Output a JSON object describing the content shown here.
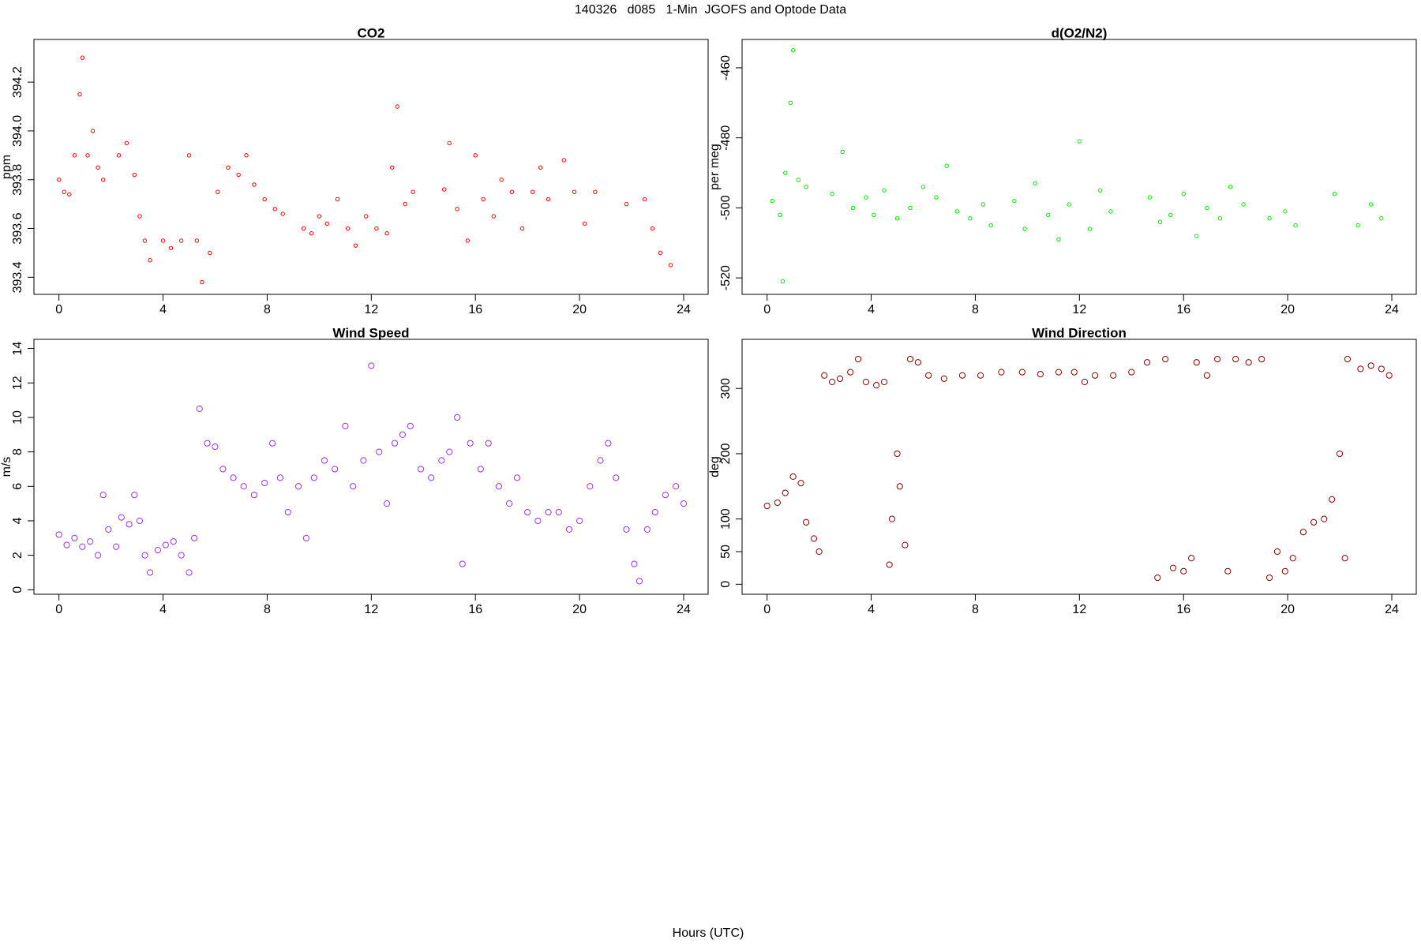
{
  "title": "140326   d085   1-Min  JGOFS and Optode Data",
  "xlabel": "Hours (UTC)",
  "chart_data": [
    {
      "type": "scatter",
      "title": "CO2",
      "ylabel": "ppm",
      "color": "#ff0000",
      "x": [
        0.0,
        0.2,
        0.4,
        0.6,
        0.8,
        0.9,
        1.1,
        1.3,
        1.5,
        1.7,
        2.3,
        2.6,
        2.9,
        3.1,
        3.3,
        3.5,
        4.0,
        4.3,
        4.7,
        5.0,
        5.3,
        5.5,
        5.8,
        6.1,
        6.5,
        6.9,
        7.2,
        7.5,
        7.9,
        8.3,
        8.6,
        9.4,
        9.7,
        10.0,
        10.3,
        10.7,
        11.1,
        11.4,
        11.8,
        12.2,
        12.6,
        12.8,
        13.0,
        13.3,
        13.6,
        14.8,
        15.0,
        15.3,
        15.7,
        16.0,
        16.3,
        16.7,
        17.0,
        17.4,
        17.8,
        18.2,
        18.5,
        18.8,
        19.4,
        19.8,
        20.2,
        20.6,
        21.8,
        22.5,
        22.8,
        23.1,
        23.5
      ],
      "values": [
        393.8,
        393.75,
        393.74,
        393.9,
        394.15,
        394.3,
        393.9,
        394.0,
        393.85,
        393.8,
        393.9,
        393.95,
        393.82,
        393.65,
        393.55,
        393.47,
        393.55,
        393.52,
        393.55,
        393.9,
        393.55,
        393.38,
        393.5,
        393.75,
        393.85,
        393.82,
        393.9,
        393.78,
        393.72,
        393.68,
        393.66,
        393.6,
        393.58,
        393.65,
        393.62,
        393.72,
        393.6,
        393.53,
        393.65,
        393.6,
        393.58,
        393.85,
        394.1,
        393.7,
        393.75,
        393.76,
        393.95,
        393.68,
        393.55,
        393.9,
        393.72,
        393.65,
        393.8,
        393.75,
        393.6,
        393.75,
        393.85,
        393.72,
        393.88,
        393.75,
        393.62,
        393.75,
        393.7,
        393.72,
        393.6,
        393.5,
        393.45
      ],
      "xlim": [
        -0.96,
        24.94
      ],
      "ylim": [
        393.33,
        394.375
      ],
      "xticks": [
        0,
        4,
        8,
        12,
        16,
        20,
        24
      ],
      "yticks": [
        393.4,
        393.6,
        393.8,
        {
          "value": 394,
          "label": "394.0"
        },
        394.2
      ]
    },
    {
      "type": "scatter",
      "title": "d(O2/N2)",
      "ylabel": "per meg",
      "color": "#00ee00",
      "x": [
        0.2,
        0.5,
        0.6,
        0.7,
        0.9,
        1.0,
        1.2,
        1.5,
        2.5,
        2.9,
        3.3,
        3.8,
        4.1,
        4.5,
        5.0,
        5.5,
        6.0,
        6.5,
        6.9,
        7.3,
        7.8,
        8.3,
        8.6,
        9.5,
        9.9,
        10.3,
        10.8,
        11.2,
        11.6,
        12.0,
        12.4,
        12.8,
        13.2,
        14.7,
        15.1,
        15.5,
        16.0,
        16.5,
        16.9,
        17.4,
        17.8,
        18.3,
        19.3,
        19.9,
        20.3,
        21.8,
        22.7,
        23.2,
        23.6
      ],
      "values": [
        -498,
        -502,
        -521,
        -490,
        -470,
        -455,
        -492,
        -494,
        -496,
        -484,
        -500,
        -497,
        -502,
        -495,
        -503,
        -500,
        -494,
        -497,
        -488,
        -501,
        -503,
        -499,
        -505,
        -498,
        -506,
        -493,
        -502,
        -509,
        -499,
        -481,
        -506,
        -495,
        -501,
        -497,
        -504,
        -502,
        -496,
        -508,
        -500,
        -503,
        -494,
        -499,
        -503,
        -501,
        -505,
        -496,
        -505,
        -499,
        -503
      ],
      "xlim": [
        -0.96,
        24.94
      ],
      "ylim": [
        -524.7,
        -451.9
      ],
      "xticks": [
        0,
        4,
        8,
        12,
        16,
        20,
        24
      ],
      "yticks": [
        -520,
        -500,
        -480,
        -460
      ]
    },
    {
      "type": "scatter",
      "title": "Wind Speed",
      "ylabel": "m/s",
      "color": "#9b30ff",
      "x": [
        0,
        0.3,
        0.6,
        0.9,
        1.2,
        1.5,
        1.7,
        1.9,
        2.2,
        2.4,
        2.7,
        2.9,
        3.1,
        3.3,
        3.5,
        3.8,
        4.1,
        4.4,
        4.7,
        5.0,
        5.2,
        5.4,
        5.7,
        6.0,
        6.3,
        6.7,
        7.1,
        7.5,
        7.9,
        8.2,
        8.5,
        8.8,
        9.2,
        9.5,
        9.8,
        10.2,
        10.6,
        11.0,
        11.3,
        11.7,
        12.0,
        12.3,
        12.6,
        12.9,
        13.2,
        13.5,
        13.9,
        14.3,
        14.7,
        15.0,
        15.3,
        15.5,
        15.8,
        16.2,
        16.5,
        16.9,
        17.3,
        17.6,
        18.0,
        18.4,
        18.8,
        19.2,
        19.6,
        20.0,
        20.4,
        20.8,
        21.1,
        21.4,
        21.8,
        22.1,
        22.3,
        22.6,
        22.9,
        23.3,
        23.7,
        24.0
      ],
      "values": [
        3.2,
        2.6,
        3.0,
        2.5,
        2.8,
        2.0,
        5.5,
        3.5,
        2.5,
        4.2,
        3.8,
        5.5,
        4.0,
        2.0,
        1.0,
        2.3,
        2.6,
        2.8,
        2.0,
        1.0,
        3.0,
        10.5,
        8.5,
        8.3,
        7.0,
        6.5,
        6.0,
        5.5,
        6.2,
        8.5,
        6.5,
        4.5,
        6.0,
        3.0,
        6.5,
        7.5,
        7.0,
        9.5,
        6.0,
        7.5,
        13.0,
        8.0,
        5.0,
        8.5,
        9.0,
        9.5,
        7.0,
        6.5,
        7.5,
        8.0,
        10.0,
        1.5,
        8.5,
        7.0,
        8.5,
        6.0,
        5.0,
        6.5,
        4.5,
        4.0,
        4.5,
        4.5,
        3.5,
        4.0,
        6.0,
        7.5,
        8.5,
        6.5,
        3.5,
        1.5,
        0.5,
        3.5,
        4.5,
        5.5,
        6.0,
        5.0
      ],
      "xlim": [
        -0.96,
        24.94
      ],
      "ylim": [
        -0.26,
        14.53
      ],
      "xticks": [
        0,
        4,
        8,
        12,
        16,
        20,
        24
      ],
      "yticks": [
        0,
        2,
        4,
        6,
        8,
        10,
        12,
        14
      ]
    },
    {
      "type": "scatter",
      "title": "Wind Direction",
      "ylabel": "deg",
      "color": "#8b0000",
      "x": [
        0,
        0.4,
        0.7,
        1.0,
        1.3,
        1.5,
        1.8,
        2.0,
        2.2,
        2.5,
        2.8,
        3.2,
        3.5,
        3.8,
        4.2,
        4.5,
        4.7,
        4.8,
        5.0,
        5.1,
        5.3,
        5.5,
        5.8,
        6.2,
        6.8,
        7.5,
        8.2,
        9.0,
        9.8,
        10.5,
        11.2,
        11.8,
        12.2,
        12.6,
        13.3,
        14.0,
        14.6,
        15.0,
        15.3,
        15.6,
        16.0,
        16.3,
        16.5,
        16.9,
        17.3,
        17.7,
        18.0,
        18.5,
        19.0,
        19.3,
        19.6,
        19.9,
        20.2,
        20.6,
        21.0,
        21.4,
        21.7,
        22.0,
        22.2,
        22.3,
        22.8,
        23.2,
        23.6,
        23.9
      ],
      "values": [
        120,
        125,
        140,
        165,
        155,
        95,
        70,
        50,
        320,
        310,
        315,
        325,
        345,
        310,
        305,
        310,
        30,
        100,
        200,
        150,
        60,
        345,
        340,
        320,
        315,
        320,
        320,
        325,
        325,
        322,
        325,
        325,
        310,
        320,
        320,
        325,
        340,
        10,
        345,
        25,
        20,
        40,
        340,
        320,
        345,
        20,
        345,
        340,
        345,
        10,
        50,
        20,
        40,
        80,
        95,
        100,
        130,
        200,
        40,
        345,
        330,
        335,
        330,
        320
      ],
      "xlim": [
        -0.96,
        24.94
      ],
      "ylim": [
        -15.3,
        375.3
      ],
      "xticks": [
        0,
        4,
        8,
        12,
        16,
        20,
        24
      ],
      "yticks": [
        0,
        50,
        100,
        200,
        300
      ]
    }
  ]
}
